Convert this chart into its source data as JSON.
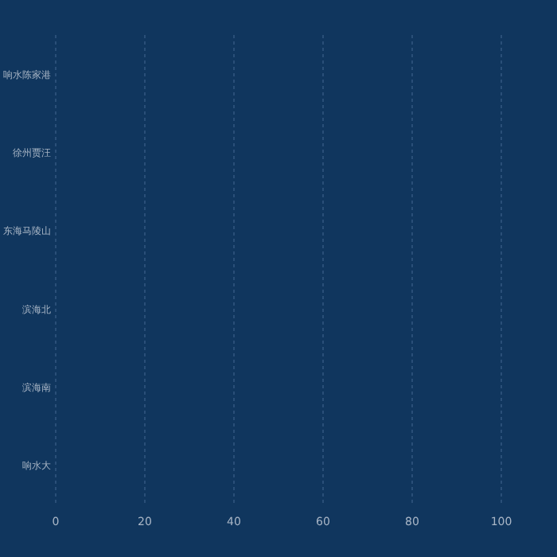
{
  "chart_data": {
    "type": "bar",
    "orientation": "horizontal",
    "categories": [
      "响水陈家港",
      "徐州贾汪",
      "东海马陵山",
      "滨海北",
      "滨海南",
      "响水大"
    ],
    "values": [
      null,
      null,
      null,
      null,
      null,
      null
    ],
    "xlim": [
      0,
      100
    ],
    "xticks": [
      0,
      20,
      40,
      60,
      80,
      100
    ],
    "grid": "x"
  }
}
